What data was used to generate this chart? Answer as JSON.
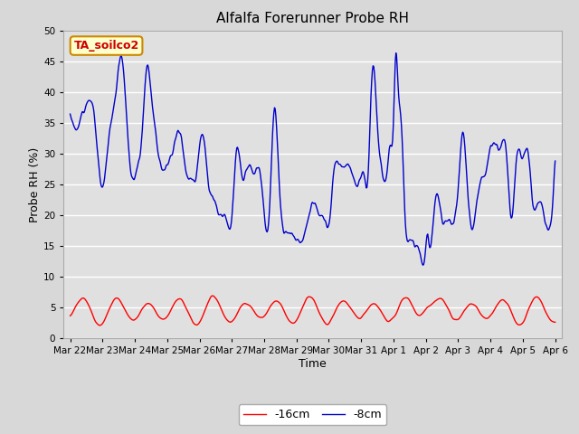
{
  "title": "Alfalfa Forerunner Probe RH",
  "xlabel": "Time",
  "ylabel": "Probe RH (%)",
  "ylim": [
    0,
    50
  ],
  "background_color": "#d8d8d8",
  "plot_bg_color": "#e0e0e0",
  "grid_color": "white",
  "line1_color": "#ff0000",
  "line2_color": "#0000cc",
  "line1_label": "-16cm",
  "line2_label": "-8cm",
  "label_box_text": "TA_soilco2",
  "label_box_facecolor": "#ffffcc",
  "label_box_edgecolor": "#cc8800",
  "label_text_color": "#cc0000",
  "xtick_labels": [
    "Mar 22",
    "Mar 23",
    "Mar 24",
    "Mar 25",
    "Mar 26",
    "Mar 27",
    "Mar 28",
    "Mar 29",
    "Mar 30",
    "Mar 31",
    "Apr 1",
    "Apr 2",
    "Apr 3",
    "Apr 4",
    "Apr 5",
    "Apr 6"
  ],
  "xtick_positions": [
    0,
    1,
    2,
    3,
    4,
    5,
    6,
    7,
    8,
    9,
    10,
    11,
    12,
    13,
    14,
    15
  ],
  "ytick_positions": [
    0,
    5,
    10,
    15,
    20,
    25,
    30,
    35,
    40,
    45,
    50
  ],
  "title_fontsize": 11,
  "axis_label_fontsize": 9,
  "tick_fontsize": 7.5
}
